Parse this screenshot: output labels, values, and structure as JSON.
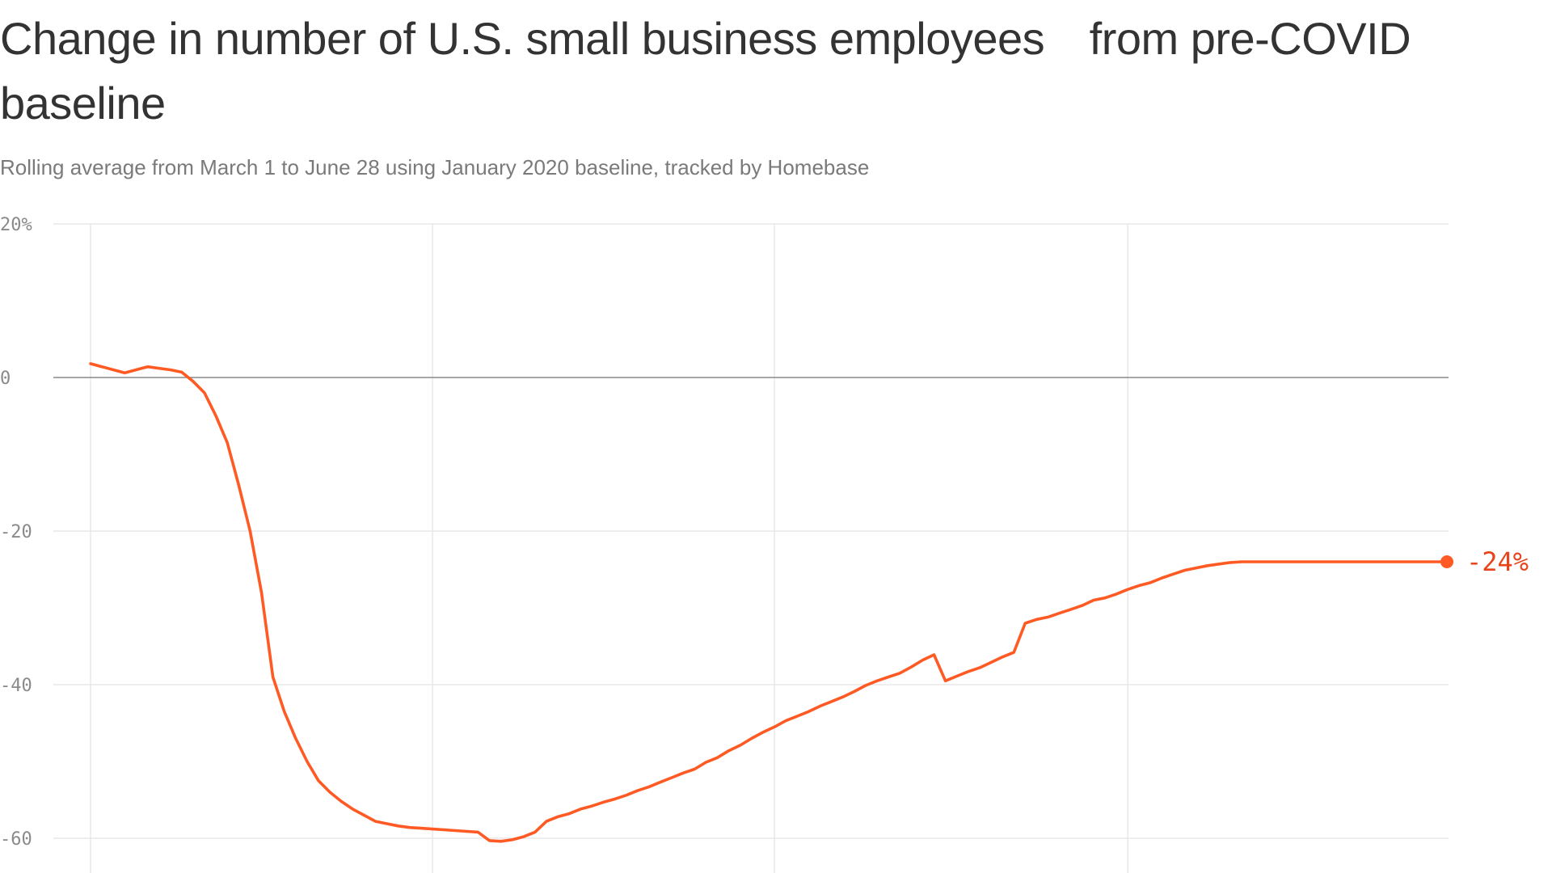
{
  "title": "Change in number of U.S. small business employees from pre-COVID baseline",
  "subtitle": "Rolling average from March 1 to June 28 using January 2020 baseline, tracked by Homebase",
  "colors": {
    "line": "#ff5a24",
    "end_label": "#e8431a",
    "zero_line": "#888888",
    "grid": "#e3e3e3",
    "text": "#333333",
    "subtle": "#7a7a7a"
  },
  "chart_data": {
    "type": "line",
    "title": "Change in number of U.S. small business employees from pre-COVID baseline",
    "subtitle": "Rolling average from March 1 to June 28 using January 2020 baseline, tracked by Homebase",
    "ylim": [
      -60,
      20
    ],
    "yticks": [
      {
        "value": 20,
        "label": "20%"
      },
      {
        "value": 0,
        "label": "0"
      },
      {
        "value": -20,
        "label": "-20"
      },
      {
        "value": -40,
        "label": "-40"
      },
      {
        "value": -60,
        "label": "-60"
      }
    ],
    "x_gridlines_day": [
      1,
      31,
      61,
      92
    ],
    "grid": true,
    "end_label": "-24%",
    "series": [
      {
        "x": [
          1,
          2,
          3,
          4,
          5,
          6,
          7,
          8,
          9,
          10,
          11,
          12,
          13,
          14,
          15,
          16,
          17,
          18,
          19,
          20,
          21,
          22,
          23,
          24,
          25,
          26,
          27,
          28,
          29,
          30,
          31,
          32,
          33,
          34,
          35,
          36,
          37,
          38,
          39,
          40,
          41,
          42,
          43,
          44,
          45,
          46,
          47,
          48,
          49,
          50,
          51,
          52,
          53,
          54,
          55,
          56,
          57,
          58,
          59,
          60,
          61,
          62,
          63,
          64,
          65,
          66,
          67,
          68,
          69,
          70,
          71,
          72,
          73,
          74,
          75,
          76,
          77,
          78,
          79,
          80,
          81,
          82,
          83,
          84,
          85,
          86,
          87,
          88,
          89,
          90,
          91,
          92,
          93,
          94,
          95,
          96,
          97,
          98,
          99,
          100,
          101,
          102,
          103,
          104,
          105,
          106,
          107,
          108,
          109,
          110,
          111,
          112,
          113,
          114,
          115,
          116,
          117,
          118,
          119,
          120
        ],
        "values": [
          1.8,
          1.4,
          1.0,
          0.6,
          1.0,
          1.4,
          1.2,
          1.0,
          0.7,
          -0.5,
          -2,
          -5,
          -8.5,
          -14,
          -20,
          -28,
          -39,
          -43.5,
          -47,
          -50,
          -52.5,
          -54,
          -55.2,
          -56.2,
          -57,
          -57.8,
          -58.1,
          -58.4,
          -58.6,
          -58.7,
          -58.8,
          -58.9,
          -59.0,
          -59.1,
          -59.2,
          -60.3,
          -60.4,
          -60.2,
          -59.8,
          -59.2,
          -57.8,
          -57.2,
          -56.8,
          -56.2,
          -55.8,
          -55.3,
          -54.9,
          -54.4,
          -53.8,
          -53.3,
          -52.7,
          -52.1,
          -51.5,
          -51.0,
          -50.1,
          -49.5,
          -48.6,
          -47.9,
          -47.0,
          -46.2,
          -45.5,
          -44.7,
          -44.1,
          -43.5,
          -42.8,
          -42.2,
          -41.6,
          -40.9,
          -40.1,
          -39.5,
          -39.0,
          -38.5,
          -37.7,
          -36.8,
          -36.1,
          -39.5,
          -38.9,
          -38.3,
          -37.8,
          -37.1,
          -36.4,
          -35.8,
          -32.0,
          -31.5,
          -31.2,
          -30.7,
          -30.2,
          -29.7,
          -29.0,
          -28.7,
          -28.2,
          -27.6,
          -27.1,
          -26.7,
          -26.1,
          -25.6,
          -25.1,
          -24.8,
          -24.5,
          -24.3,
          -24.1,
          -24.0,
          -24.0,
          -24.0,
          -24.0,
          -24.0,
          -24.0,
          -24.0,
          -24.0,
          -24.0,
          -24.0,
          -24.0,
          -24.0,
          -24.0,
          -24.0,
          -24.0,
          -24.0,
          -24.0,
          -24.0,
          -24.0
        ]
      }
    ]
  }
}
